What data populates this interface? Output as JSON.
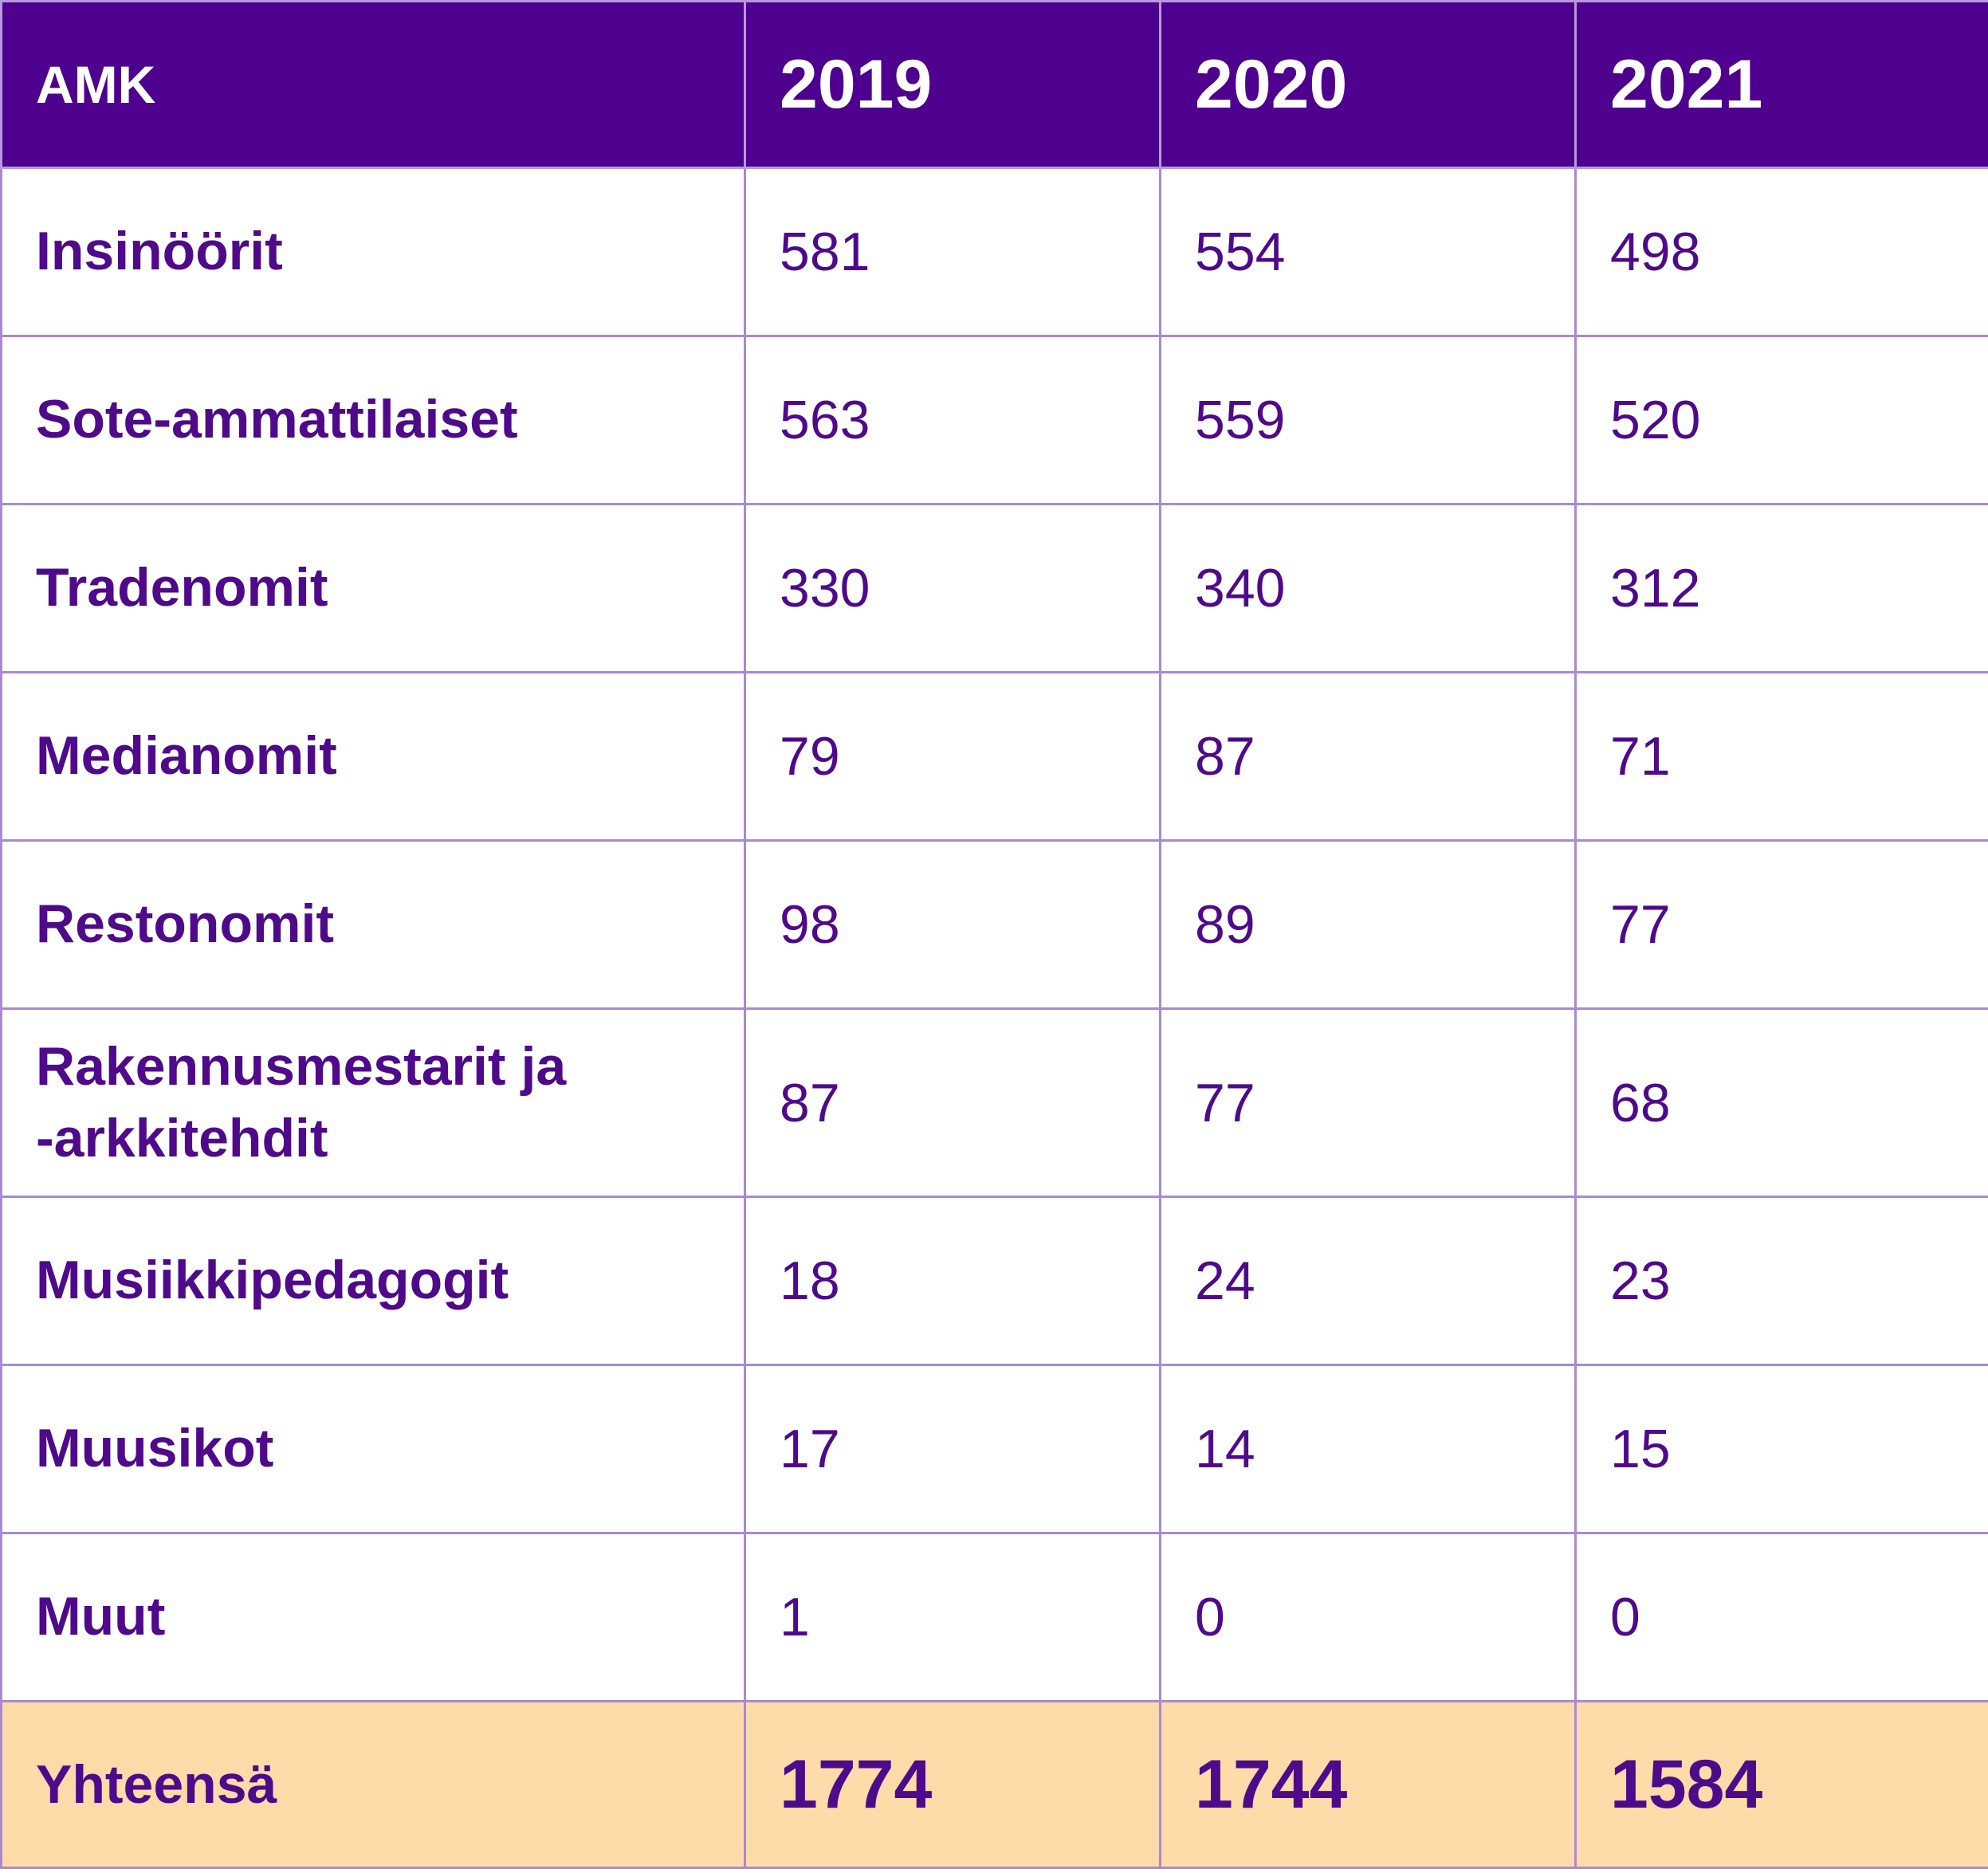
{
  "header": {
    "label": "AMK",
    "years": [
      "2019",
      "2020",
      "2021"
    ]
  },
  "rows": [
    {
      "label": "Insinöörit",
      "values": [
        "581",
        "554",
        "498"
      ]
    },
    {
      "label": "Sote-ammattilaiset",
      "values": [
        "563",
        "559",
        "520"
      ]
    },
    {
      "label": "Tradenomit",
      "values": [
        "330",
        "340",
        "312"
      ]
    },
    {
      "label": "Medianomit",
      "values": [
        "79",
        "87",
        "71"
      ]
    },
    {
      "label": "Restonomit",
      "values": [
        "98",
        "89",
        "77"
      ]
    },
    {
      "label": "Rakennusmestarit ja -arkkitehdit",
      "label_lines": [
        "Rakennusmestarit ja",
        "-arkkitehdit"
      ],
      "values": [
        "87",
        "77",
        "68"
      ]
    },
    {
      "label": "Musiikkipedagogit",
      "values": [
        "18",
        "24",
        "23"
      ]
    },
    {
      "label": "Muusikot",
      "values": [
        "17",
        "14",
        "15"
      ]
    },
    {
      "label": "Muut",
      "values": [
        "1",
        "0",
        "0"
      ]
    }
  ],
  "total": {
    "label": "Yhteensä",
    "values": [
      "1774",
      "1744",
      "1584"
    ]
  },
  "colors": {
    "header_bg": "#4e008e",
    "text": "#4e0a8a",
    "border": "#a98ad0",
    "total_bg": "#fedba9"
  }
}
